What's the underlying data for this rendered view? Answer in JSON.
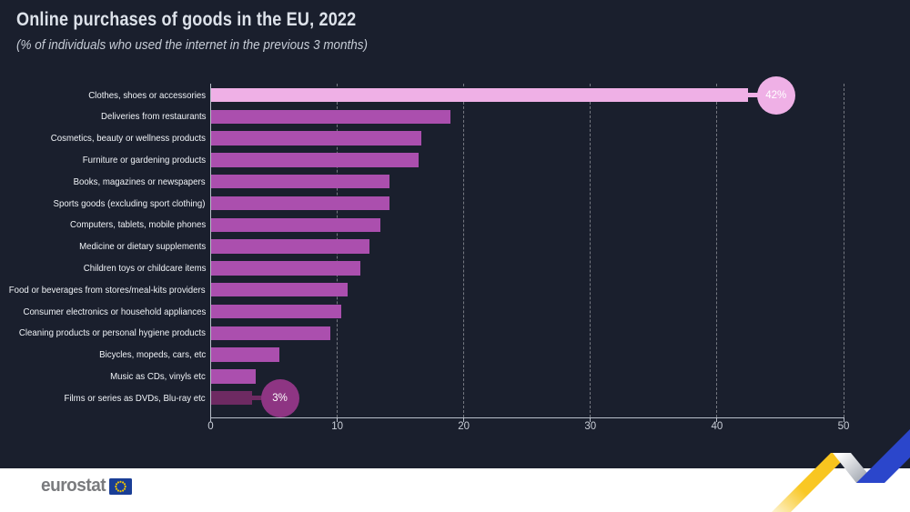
{
  "chart_data": {
    "type": "bar",
    "orientation": "horizontal",
    "title": "Online purchases of goods in the EU, 2022",
    "subtitle": "(% of individuals who used the internet in the previous 3 months)",
    "unit": "%",
    "categories": [
      "Clothes, shoes or accessories",
      "Deliveries from restaurants",
      "Cosmetics, beauty or wellness products",
      "Furniture or gardening products",
      "Books, magazines or newspapers",
      "Sports goods (excluding sport clothing)",
      "Computers, tablets, mobile phones",
      "Medicine or dietary supplements",
      "Children toys or childcare items",
      "Food or beverages from stores/meal-kits providers",
      "Consumer electronics or household appliances",
      "Cleaning products or personal hygiene products",
      "Bicycles, mopeds, cars, etc",
      "Music as CDs, vinyls etc",
      "Films or series as DVDs, Blu-ray etc"
    ],
    "values": [
      42.4,
      18.9,
      16.6,
      16.4,
      14.1,
      14.1,
      13.4,
      12.5,
      11.8,
      10.8,
      10.3,
      9.4,
      5.4,
      3.5,
      3.2
    ],
    "xlim": [
      0,
      50
    ],
    "xticks": [
      0,
      10,
      20,
      30,
      40,
      50
    ],
    "xlabel": "",
    "grid": "dashed-vertical",
    "legend": "none",
    "max_index": 0,
    "min_index": 14,
    "annotations": [
      {
        "index": 0,
        "label": "42%",
        "circle_color": "#efb0e6",
        "connector_color": "#efb0e6"
      },
      {
        "index": 14,
        "label": "3%",
        "circle_color": "#8e3583",
        "connector_color": "#6e2a62"
      }
    ],
    "colors": {
      "background": "#1a1f2d",
      "bar_default": "#ab4fae",
      "bar_max": "#efb0e6",
      "bar_min": "#6e2a62",
      "axis": "#b9bfca",
      "gridline": "rgba(255,255,255,0.4)",
      "tick_label": "#c9ced7",
      "category_label": "#f0f3f7"
    }
  },
  "footer": {
    "logo_text": "eurostat",
    "logo_color": "#7a7b7e",
    "flag_blue": "#1a3e96",
    "star_yellow": "#f2c500",
    "strip_color": "#ffffff"
  },
  "decor": {
    "ribbon_yellow": "#f8c41d",
    "ribbon_gray": "#9ba1ab",
    "ribbon_blue": "#2b46cb"
  }
}
